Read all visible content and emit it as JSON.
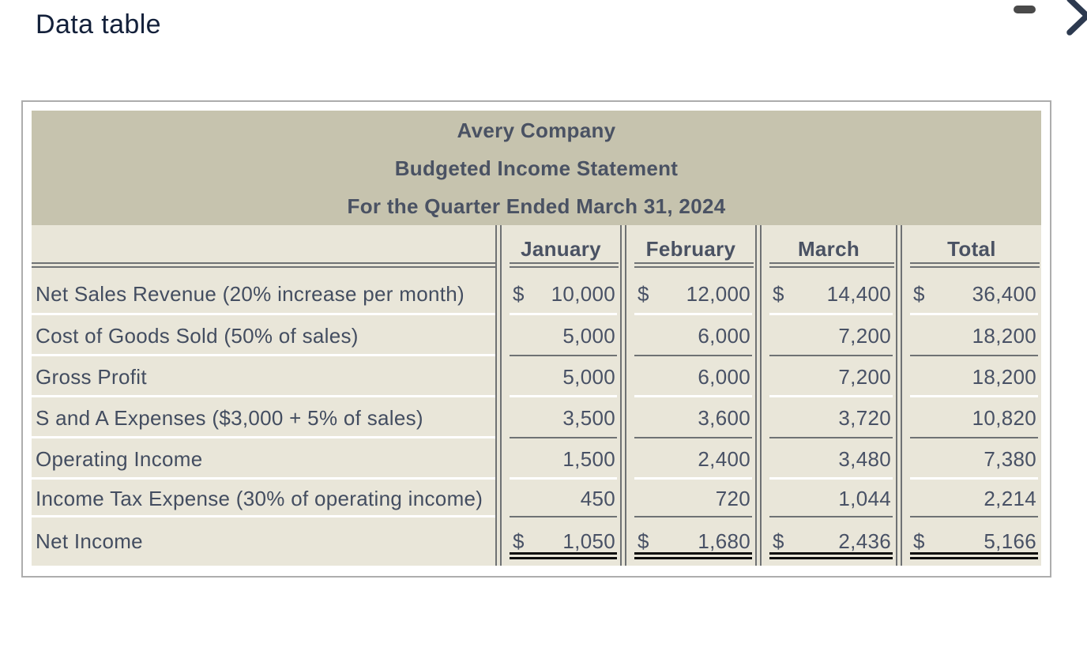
{
  "page": {
    "title": "Data table"
  },
  "window_controls": {
    "minimize_icon": "minimize",
    "close_icon": "close"
  },
  "currency_symbol": "$",
  "table": {
    "title_lines": [
      "Avery Company",
      "Budgeted Income Statement",
      "For the Quarter Ended March 31, 2024"
    ],
    "columns": [
      "January",
      "February",
      "March",
      "Total"
    ],
    "rows": [
      {
        "label": "Net Sales Revenue (20% increase per month)",
        "dollar": true,
        "bold": false,
        "values": [
          "10,000",
          "12,000",
          "14,400",
          "36,400"
        ],
        "rule": "white"
      },
      {
        "label": "Cost of Goods Sold (50% of sales)",
        "dollar": false,
        "bold": false,
        "values": [
          "5,000",
          "6,000",
          "7,200",
          "18,200"
        ],
        "rule": "gray"
      },
      {
        "label": "Gross Profit",
        "dollar": false,
        "bold": false,
        "values": [
          "5,000",
          "6,000",
          "7,200",
          "18,200"
        ],
        "rule": "white"
      },
      {
        "label": "S and A Expenses ($3,000 + 5% of sales)",
        "dollar": false,
        "bold": false,
        "values": [
          "3,500",
          "3,600",
          "3,720",
          "10,820"
        ],
        "rule": "gray"
      },
      {
        "label": "Operating Income",
        "dollar": false,
        "bold": false,
        "values": [
          "1,500",
          "2,400",
          "3,480",
          "7,380"
        ],
        "rule": "white"
      },
      {
        "label": "Income Tax Expense (30% of operating income)",
        "dollar": false,
        "bold": false,
        "values": [
          "450",
          "720",
          "1,044",
          "2,214"
        ],
        "rule": "gray"
      },
      {
        "label": "Net Income",
        "dollar": true,
        "bold": true,
        "values": [
          "1,050",
          "1,680",
          "2,436",
          "5,166"
        ],
        "rule": "double-black"
      }
    ]
  },
  "colors": {
    "header_background": "#c6c3ae",
    "body_background": "#e9e6d9",
    "text": "#485165",
    "rule_gray": "#6f7274",
    "panel_border": "#adadad",
    "page_title_text": "#13203a",
    "total_rule_black": "#0d0d0d"
  }
}
